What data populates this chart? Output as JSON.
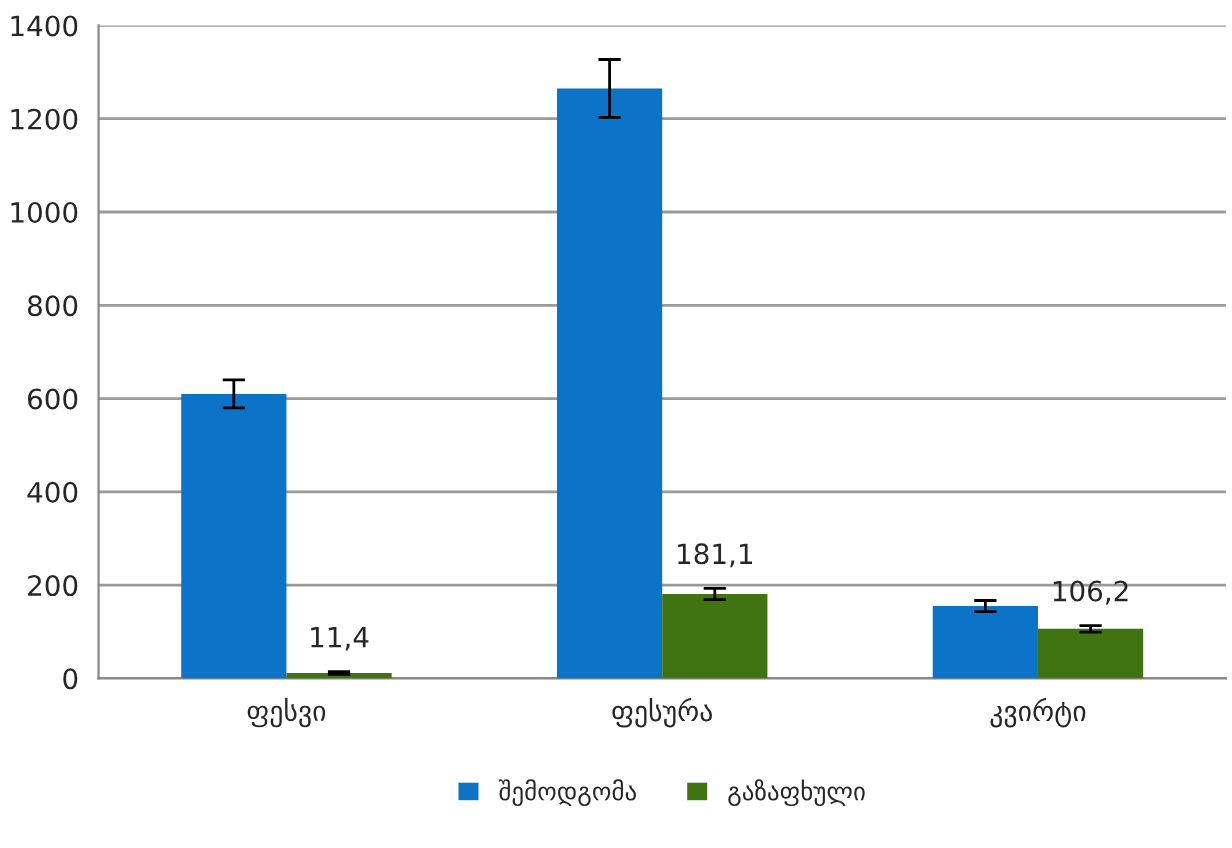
{
  "chart_data": {
    "type": "bar",
    "categories": [
      "ფესვი",
      "ფესურა",
      "კვირტი"
    ],
    "series": [
      {
        "name": "შემოდგომა",
        "color": "#0b73c8",
        "values": [
          610,
          1265,
          155
        ],
        "errors": [
          30,
          62,
          12
        ]
      },
      {
        "name": "გაზაფხული",
        "color": "#3f7410",
        "values": [
          11.4,
          181.1,
          106.2
        ],
        "errors": [
          3,
          12,
          7
        ],
        "value_labels": [
          "11,4",
          "181,1",
          "106,2"
        ]
      }
    ],
    "ylim": [
      0,
      1400
    ],
    "yticks": [
      0,
      200,
      400,
      600,
      800,
      1000,
      1200,
      1400
    ],
    "grid": "y",
    "legend": "bottom"
  }
}
